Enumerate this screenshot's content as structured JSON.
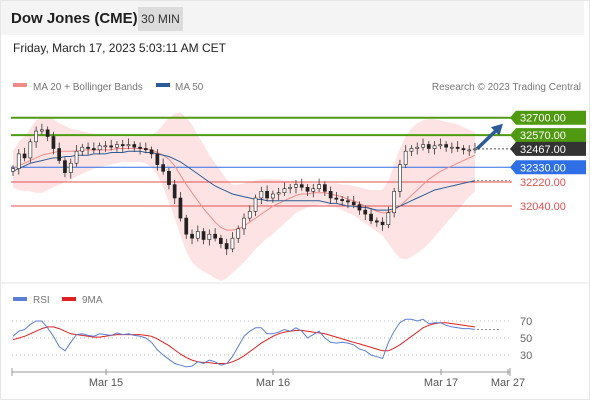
{
  "header": {
    "title": "Dow Jones (CME)",
    "timeframe_label": "30 MIN"
  },
  "timestamp": "Friday, March 17, 2023 5:03:11 AM CET",
  "legend": {
    "ma20": {
      "label": "MA 20 + Bollinger Bands",
      "color": "#f28c8c"
    },
    "ma50": {
      "label": "MA 50",
      "color": "#2d5b96"
    },
    "rsi": {
      "label": "RSI",
      "color": "#5b7fd6"
    },
    "ma9": {
      "label": "9MA",
      "color": "#e02020"
    }
  },
  "credit": "Research © 2023 Trading Central",
  "chart_data": [
    {
      "type": "candlestick",
      "title": "Dow Jones (CME)",
      "timeframe": "30 MIN",
      "x_ticks": [
        "Mar 15",
        "Mar 16",
        "Mar 17",
        "Mar 27"
      ],
      "ylim": [
        31450,
        32870
      ],
      "price_series": [
        32320,
        32430,
        32400,
        32520,
        32600,
        32610,
        32560,
        32470,
        32380,
        32290,
        32360,
        32450,
        32480,
        32470,
        32460,
        32490,
        32490,
        32480,
        32500,
        32490,
        32500,
        32480,
        32470,
        32460,
        32430,
        32350,
        32300,
        32200,
        32100,
        31950,
        31830,
        31800,
        31850,
        31790,
        31830,
        31800,
        31760,
        31720,
        31800,
        31870,
        31950,
        32000,
        32100,
        32150,
        32100,
        32130,
        32140,
        32170,
        32180,
        32200,
        32180,
        32150,
        32170,
        32200,
        32150,
        32100,
        32090,
        32080,
        32070,
        32050,
        32010,
        31980,
        31930,
        31920,
        31900,
        31990,
        32150,
        32350,
        32450,
        32470,
        32480,
        32500,
        32470,
        32490,
        32500,
        32480,
        32480,
        32470,
        32460,
        32460,
        32467
      ],
      "ma20_series": [
        32320,
        32340,
        32360,
        32380,
        32400,
        32420,
        32430,
        32440,
        32450,
        32450,
        32450,
        32450,
        32460,
        32460,
        32460,
        32460,
        32460,
        32460,
        32470,
        32470,
        32470,
        32470,
        32470,
        32470,
        32460,
        32440,
        32420,
        32390,
        32340,
        32270,
        32200,
        32140,
        32080,
        32020,
        31970,
        31920,
        31880,
        31860,
        31860,
        31870,
        31890,
        31920,
        31950,
        31980,
        32010,
        32040,
        32060,
        32080,
        32100,
        32120,
        32130,
        32130,
        32140,
        32140,
        32140,
        32130,
        32120,
        32110,
        32090,
        32080,
        32060,
        32040,
        32020,
        32000,
        31990,
        31990,
        32010,
        32040,
        32080,
        32120,
        32160,
        32200,
        32240,
        32270,
        32300,
        32320,
        32340,
        32360,
        32380,
        32400,
        32420
      ],
      "bb_upper_series": [
        32450,
        32520,
        32560,
        32620,
        32680,
        32700,
        32700,
        32690,
        32660,
        32640,
        32620,
        32610,
        32600,
        32590,
        32580,
        32570,
        32560,
        32560,
        32560,
        32560,
        32560,
        32560,
        32560,
        32560,
        32570,
        32600,
        32650,
        32700,
        32730,
        32740,
        32700,
        32650,
        32570,
        32500,
        32420,
        32360,
        32300,
        32240,
        32200,
        32200,
        32210,
        32220,
        32230,
        32240,
        32240,
        32240,
        32240,
        32230,
        32230,
        32220,
        32220,
        32210,
        32210,
        32210,
        32210,
        32210,
        32210,
        32200,
        32200,
        32190,
        32180,
        32170,
        32160,
        32160,
        32160,
        32230,
        32350,
        32470,
        32560,
        32620,
        32660,
        32680,
        32690,
        32690,
        32680,
        32670,
        32660,
        32650,
        32630,
        32610,
        32590
      ],
      "bb_lower_series": [
        32180,
        32160,
        32150,
        32150,
        32140,
        32140,
        32160,
        32180,
        32200,
        32220,
        32240,
        32260,
        32280,
        32300,
        32320,
        32330,
        32340,
        32350,
        32360,
        32370,
        32370,
        32370,
        32370,
        32360,
        32330,
        32270,
        32180,
        32070,
        31950,
        31820,
        31700,
        31620,
        31580,
        31550,
        31530,
        31500,
        31480,
        31500,
        31540,
        31580,
        31620,
        31670,
        31720,
        31760,
        31800,
        31830,
        31870,
        31910,
        31950,
        31990,
        32010,
        32030,
        32040,
        32050,
        32050,
        32040,
        32030,
        32010,
        31990,
        31970,
        31940,
        31910,
        31880,
        31850,
        31820,
        31760,
        31700,
        31650,
        31640,
        31660,
        31690,
        31720,
        31760,
        31810,
        31860,
        31910,
        31960,
        32010,
        32060,
        32110,
        32150
      ],
      "ma50_series": [
        32300,
        32320,
        32340,
        32360,
        32370,
        32380,
        32390,
        32400,
        32400,
        32410,
        32410,
        32420,
        32420,
        32420,
        32430,
        32430,
        32430,
        32440,
        32440,
        32440,
        32450,
        32450,
        32450,
        32440,
        32440,
        32430,
        32420,
        32410,
        32390,
        32370,
        32340,
        32310,
        32280,
        32250,
        32220,
        32190,
        32170,
        32150,
        32130,
        32120,
        32110,
        32100,
        32090,
        32090,
        32080,
        32080,
        32080,
        32080,
        32080,
        32080,
        32080,
        32080,
        32080,
        32080,
        32070,
        32060,
        32060,
        32050,
        32040,
        32040,
        32030,
        32030,
        32020,
        32010,
        32010,
        32010,
        32020,
        32040,
        32060,
        32080,
        32100,
        32120,
        32140,
        32160,
        32170,
        32180,
        32190,
        32200,
        32210,
        32220,
        32230
      ],
      "levels": [
        {
          "value": 32700,
          "label": "32700.00",
          "style": "resistance",
          "color": "#4f9a10"
        },
        {
          "value": 32570,
          "label": "32570.00",
          "style": "resistance",
          "color": "#4f9a10"
        },
        {
          "value": 32467,
          "label": "32467.00",
          "style": "last",
          "color": "#333333"
        },
        {
          "value": 32330,
          "label": "32330.00",
          "style": "pivot",
          "color": "#2e6fe6"
        },
        {
          "value": 32220,
          "label": "32220.00",
          "style": "support",
          "color": "#e05050"
        },
        {
          "value": 32040,
          "label": "32040.00",
          "style": "support",
          "color": "#e05050"
        }
      ],
      "arrow": {
        "direction": "up",
        "color": "#2d5b96"
      }
    },
    {
      "type": "line",
      "panel": "RSI",
      "ylim": [
        0,
        100
      ],
      "y_ticks": [
        70,
        50,
        30
      ],
      "series": [
        {
          "name": "RSI",
          "values": [
            52,
            58,
            60,
            66,
            70,
            70,
            62,
            52,
            40,
            35,
            45,
            54,
            55,
            53,
            52,
            55,
            54,
            53,
            56,
            54,
            55,
            53,
            52,
            50,
            45,
            36,
            30,
            25,
            20,
            18,
            16,
            17,
            22,
            20,
            24,
            22,
            18,
            20,
            28,
            40,
            52,
            58,
            62,
            62,
            55,
            55,
            57,
            60,
            58,
            62,
            58,
            50,
            54,
            58,
            50,
            45,
            44,
            45,
            44,
            42,
            37,
            35,
            30,
            28,
            26,
            45,
            58,
            68,
            72,
            72,
            70,
            72,
            67,
            68,
            68,
            65,
            63,
            62,
            61,
            61,
            60
          ]
        },
        {
          "name": "9MA",
          "values": [
            48,
            50,
            52,
            55,
            58,
            61,
            63,
            63,
            61,
            58,
            55,
            54,
            53,
            52,
            51,
            51,
            52,
            53,
            54,
            54,
            54,
            54,
            54,
            53,
            52,
            49,
            45,
            41,
            36,
            31,
            27,
            24,
            22,
            21,
            21,
            20,
            20,
            20,
            22,
            25,
            29,
            34,
            39,
            44,
            48,
            52,
            55,
            57,
            58,
            59,
            59,
            58,
            57,
            56,
            55,
            53,
            51,
            49,
            47,
            45,
            43,
            41,
            39,
            37,
            35,
            35,
            38,
            42,
            47,
            52,
            57,
            62,
            65,
            67,
            68,
            68,
            67,
            66,
            65,
            64,
            63
          ]
        }
      ]
    }
  ]
}
